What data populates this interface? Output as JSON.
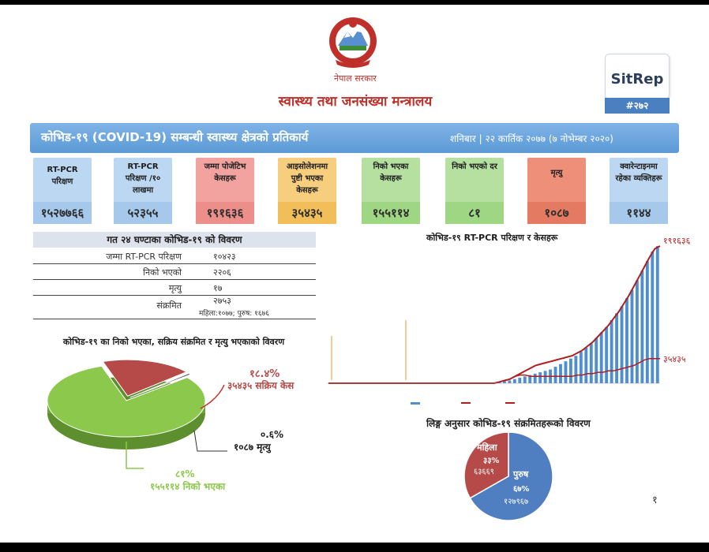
{
  "header": {
    "gov_name": "नेपाल सरकार",
    "ministry": "स्वास्थ्य तथा जनसंख्या मन्त्रालय",
    "sitrep_label": "SitRep",
    "sitrep_number": "#२७२"
  },
  "banner": {
    "title": "कोभिड-१९ (COVID-19) सम्बन्धी स्वास्थ्य क्षेत्रको प्रतिकार्य",
    "date": "शनिबार | २२ कार्तिक २०७७ (७ नोभेम्बर २०२०)"
  },
  "cards": [
    {
      "label": "RT-PCR परिक्षण",
      "value": "१५२७७६६",
      "color": "#bcd7f2",
      "valcolor": "#a6c8ea"
    },
    {
      "label": "RT-PCR परिक्षण /१० लाखमा",
      "value": "५२३५५",
      "color": "#bcd7f2",
      "valcolor": "#a6c8ea"
    },
    {
      "label": "जम्मा पोजेटिभ केसहरू",
      "value": "१९१६३६",
      "color": "#f2a3a0",
      "valcolor": "#ec8f8b"
    },
    {
      "label": "आइसोलेशनमा पुष्टी भएका केसहरू",
      "value": "३५४३५",
      "color": "#f6ce7e",
      "valcolor": "#f2be5a"
    },
    {
      "label": "निको भएका केसहरू",
      "value": "१५५११४",
      "color": "#b6e0a0",
      "valcolor": "#9fd684"
    },
    {
      "label": "निको भएको दर",
      "value": "८१",
      "color": "#b6e0a0",
      "valcolor": "#9fd684"
    },
    {
      "label": "मृत्यु",
      "value": "१०८७",
      "color": "#ee8f7a",
      "valcolor": "#e57a62"
    },
    {
      "label": "क्वारेन्टाइनमा रहेका व्यक्तिहरू",
      "value": "११४४",
      "color": "#bcd7f2",
      "valcolor": "#a6c8ea"
    }
  ],
  "last24": {
    "heading": "गत २४ घण्टाका कोभिड-१९ को विवरण",
    "rows": [
      {
        "label": "जम्मा RT-PCR परिक्षण",
        "value": "१०४२३"
      },
      {
        "label": "निको भएको",
        "value": "२२०६"
      },
      {
        "label": "मृत्यु",
        "value": "१७"
      },
      {
        "label": "संक्रमित",
        "value": "२७५३"
      }
    ],
    "gender_note": "महिला:१०७७; पुरुष: १६७६"
  },
  "outcome_pie": {
    "title": "कोभिड-१९ का निको भएका, सक्रिय संक्रमित र मृत्यु भएकाको विवरण",
    "active_pct": "१८.४%",
    "active_label": "३५४३५ सक्रिय केस",
    "death_pct": "०.६%",
    "death_label": "१०८७ मृत्यु",
    "recovered_pct": "८१%",
    "recovered_label": "१५५११४  निको भएका",
    "colors": {
      "recovered": "#8cc84b",
      "active": "#b54a48",
      "death": "#2e2e2e"
    }
  },
  "trend_chart": {
    "title": "कोभिड-१९ RT-PCR परिक्षण र केसहरू",
    "end_total_label": "१९१६३६",
    "end_active_label": "३५४३५"
  },
  "gender_pie": {
    "title": "लिङ्ग अनुसार कोभिड-१९ संक्रमितहरूको विवरण",
    "female_label": "महिला",
    "female_pct": "३३%",
    "female_value": "६३६६९",
    "male_label": "पुरुष",
    "male_pct": "६७%",
    "male_value": "१२७९६७",
    "colors": {
      "male": "#4f7fc0",
      "female": "#b54a48"
    }
  },
  "page_number": "१",
  "chart_data": [
    {
      "type": "pie",
      "title": "कोभिड-१९ का निको भएका, सक्रिय संक्रमित र मृत्यु भएकाको विवरण",
      "categories": [
        "निको भएका",
        "सक्रिय केस",
        "मृत्यु"
      ],
      "values": [
        155114,
        35435,
        1087
      ],
      "percent": [
        81,
        18.4,
        0.6
      ]
    },
    {
      "type": "bar",
      "title": "कोभिड-१९ RT-PCR परिक्षण र केसहरू",
      "series": [
        {
          "kind": "bar",
          "values": [
            0,
            0,
            0,
            0,
            0,
            0,
            0,
            0,
            0,
            0,
            0,
            0,
            0,
            0,
            0,
            0,
            0,
            0,
            0,
            0,
            0,
            0,
            0,
            0,
            0,
            0,
            0,
            0,
            0,
            0,
            0,
            0,
            0.5,
            1,
            1.5,
            2,
            3,
            4,
            5,
            6,
            7,
            8,
            9,
            10,
            12,
            14,
            16,
            18,
            20,
            23,
            26,
            29,
            33,
            37,
            41,
            46,
            51,
            56,
            62,
            68,
            75,
            82,
            89,
            96,
            100
          ]
        },
        {
          "kind": "line",
          "values": [
            0,
            0,
            0,
            0,
            0,
            0,
            0,
            0,
            0,
            0,
            0,
            0,
            0,
            0,
            0,
            0,
            0,
            0,
            0,
            0,
            0,
            0,
            0,
            0,
            0,
            0,
            0,
            0,
            0,
            0,
            0,
            0,
            0,
            1,
            2,
            3,
            5,
            7,
            9,
            11,
            13,
            14,
            15,
            16,
            17,
            18,
            19,
            20,
            22,
            24,
            27,
            30,
            34,
            38,
            42,
            47,
            52,
            58,
            64,
            71,
            78,
            85,
            92,
            98,
            100
          ]
        },
        {
          "kind": "line",
          "values": [
            0,
            0,
            0,
            0,
            0,
            0,
            0,
            0,
            0,
            0,
            0,
            0,
            0,
            0,
            0,
            0,
            0,
            0,
            0,
            0,
            0,
            0,
            0,
            0,
            0,
            0,
            0,
            0,
            0,
            0,
            0,
            0,
            0,
            1,
            2,
            3,
            5,
            6,
            6,
            5,
            5,
            5,
            5,
            5,
            5,
            5,
            5,
            5,
            6,
            6,
            7,
            7,
            8,
            8,
            9,
            9,
            10,
            11,
            12,
            13,
            15,
            17,
            18,
            18,
            18
          ]
        }
      ],
      "end_labels": [
        "१९१६३६",
        "३५४३५"
      ]
    },
    {
      "type": "pie",
      "title": "लिङ्ग अनुसार कोभिड-१९ संक्रमितहरूको विवरण",
      "categories": [
        "पुरुष",
        "महिला"
      ],
      "values": [
        127967,
        63669
      ],
      "percent": [
        67,
        33
      ]
    }
  ]
}
